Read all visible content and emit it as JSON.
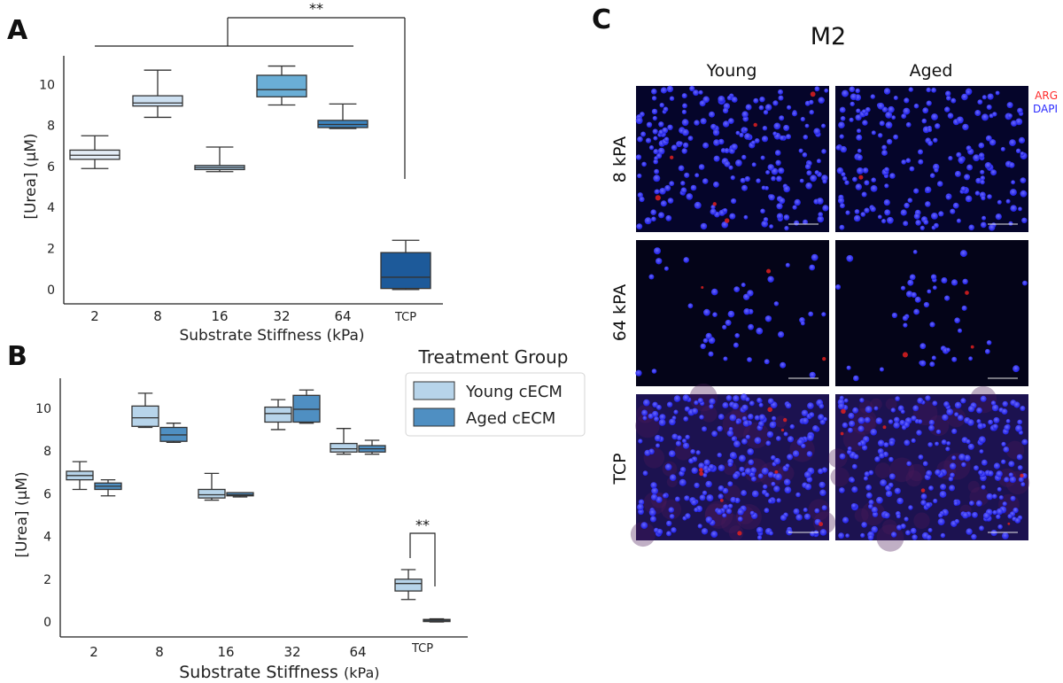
{
  "panels": {
    "A": {
      "letter": "A"
    },
    "B": {
      "letter": "B"
    },
    "C": {
      "letter": "C",
      "title": "M2",
      "columns": [
        "Young",
        "Aged"
      ],
      "rows": [
        "8 kPA",
        "64 kPA",
        "TCP"
      ],
      "legend": [
        {
          "label": "ARG",
          "color": "#ff2a2a"
        },
        {
          "label": "DAPI",
          "color": "#2a2aff"
        }
      ]
    }
  },
  "chart_data": [
    {
      "type": "box",
      "panel": "A",
      "xlabel": "Substrate Stiffness  (kPa)",
      "ylabel": "[Urea] (µM)",
      "ylim": [
        -0.7,
        11.4
      ],
      "yticks": [
        0,
        2,
        4,
        6,
        8,
        10
      ],
      "categories": [
        "2",
        "8",
        "16",
        "32",
        "64",
        "TCP"
      ],
      "boxes": [
        {
          "category": "2",
          "min": 5.9,
          "q1": 6.35,
          "median": 6.55,
          "q3": 6.8,
          "max": 7.5,
          "color": "#e3ecf6"
        },
        {
          "category": "8",
          "min": 8.4,
          "q1": 8.95,
          "median": 9.1,
          "q3": 9.45,
          "max": 10.7,
          "color": "#cde0f1"
        },
        {
          "category": "16",
          "min": 5.75,
          "q1": 5.85,
          "median": 5.95,
          "q3": 6.05,
          "max": 6.95,
          "color": "#a8cbe6"
        },
        {
          "category": "32",
          "min": 9.0,
          "q1": 9.4,
          "median": 9.75,
          "q3": 10.45,
          "max": 10.9,
          "color": "#6aaed6"
        },
        {
          "category": "64",
          "min": 7.85,
          "q1": 7.9,
          "median": 8.05,
          "q3": 8.25,
          "max": 9.05,
          "color": "#3d83bd"
        },
        {
          "category": "TCP",
          "min": 0.0,
          "q1": 0.05,
          "median": 0.6,
          "q3": 1.8,
          "max": 2.4,
          "color": "#1d5a9a"
        }
      ],
      "annotations": [
        "**"
      ]
    },
    {
      "type": "box",
      "panel": "B",
      "xlabel": "Substrate Stiffness",
      "xlabel_unit": "(kPa)",
      "ylabel": "[Urea] (µM)",
      "ylim": [
        -0.7,
        11.4
      ],
      "yticks": [
        0,
        2,
        4,
        6,
        8,
        10
      ],
      "categories": [
        "2",
        "8",
        "16",
        "32",
        "64",
        "TCP"
      ],
      "legend_title": "Treatment Group",
      "series": [
        {
          "name": "Young cECM",
          "color": "#b7d4ea",
          "boxes": [
            {
              "min": 6.2,
              "q1": 6.65,
              "median": 6.85,
              "q3": 7.05,
              "max": 7.5
            },
            {
              "min": 9.1,
              "q1": 9.15,
              "median": 9.55,
              "q3": 10.1,
              "max": 10.7
            },
            {
              "min": 5.7,
              "q1": 5.8,
              "median": 5.95,
              "q3": 6.2,
              "max": 6.95
            },
            {
              "min": 9.0,
              "q1": 9.35,
              "median": 9.75,
              "q3": 10.05,
              "max": 10.4
            },
            {
              "min": 7.85,
              "q1": 7.95,
              "median": 8.1,
              "q3": 8.35,
              "max": 9.05
            },
            {
              "min": 1.05,
              "q1": 1.45,
              "median": 1.8,
              "q3": 2.0,
              "max": 2.45
            }
          ]
        },
        {
          "name": "Aged cECM",
          "color": "#4f8fc2",
          "boxes": [
            {
              "min": 5.9,
              "q1": 6.2,
              "median": 6.35,
              "q3": 6.5,
              "max": 6.65
            },
            {
              "min": 8.4,
              "q1": 8.45,
              "median": 8.75,
              "q3": 9.1,
              "max": 9.3
            },
            {
              "min": 5.85,
              "q1": 5.9,
              "median": 5.95,
              "q3": 6.05,
              "max": 6.05
            },
            {
              "min": 9.3,
              "q1": 9.35,
              "median": 9.95,
              "q3": 10.6,
              "max": 10.85
            },
            {
              "min": 7.85,
              "q1": 7.95,
              "median": 8.1,
              "q3": 8.25,
              "max": 8.5
            },
            {
              "min": 0.0,
              "q1": 0.02,
              "median": 0.08,
              "q3": 0.12,
              "max": 0.15
            }
          ]
        }
      ],
      "annotations": [
        "**"
      ]
    }
  ]
}
